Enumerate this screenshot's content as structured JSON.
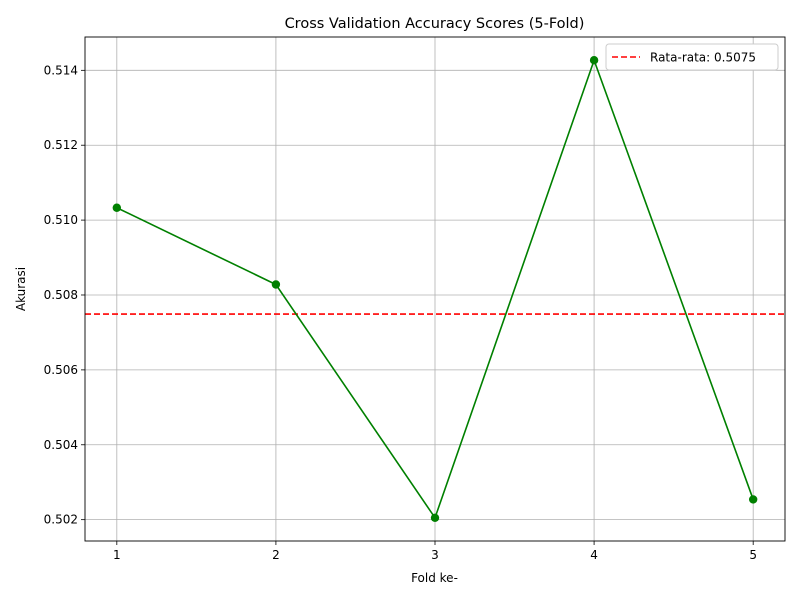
{
  "chart_data": {
    "type": "line",
    "title": "Cross Validation Accuracy Scores (5-Fold)",
    "xlabel": "Fold ke-",
    "ylabel": "Akurasi",
    "x": [
      1,
      2,
      3,
      4,
      5
    ],
    "series": [
      {
        "values": [
          0.51033,
          0.50828,
          0.50205,
          0.51427,
          0.50254
        ],
        "color": "#008000",
        "marker": "circle"
      }
    ],
    "reference_line": {
      "label": "Rata-rata: 0.5075",
      "value": 0.50749,
      "color": "#ff0000",
      "style": "dashed"
    },
    "xlim": [
      0.8,
      5.2
    ],
    "ylim": [
      0.50143,
      0.51489
    ],
    "xticks": [
      "1",
      "2",
      "3",
      "4",
      "5"
    ],
    "yticks": [
      "0.502",
      "0.504",
      "0.506",
      "0.508",
      "0.510",
      "0.512",
      "0.514"
    ],
    "grid": true,
    "legend_position": "top-right"
  }
}
